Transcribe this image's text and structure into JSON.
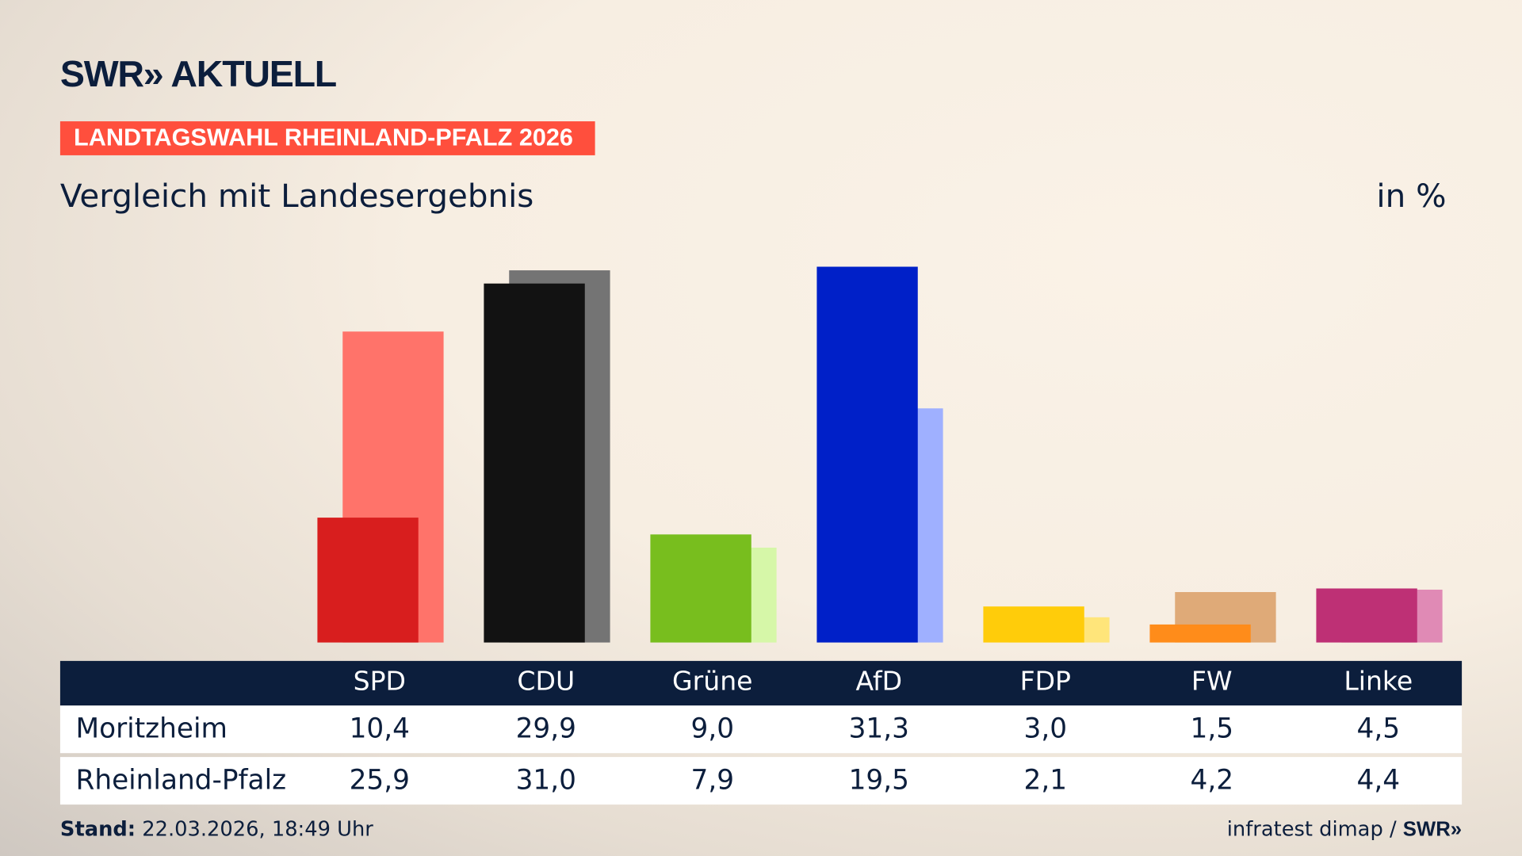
{
  "brand": {
    "logo_text": "SWR» AKTUELL",
    "footer_logo": "SWR»"
  },
  "tag": "LANDTAGSWAHL RHEINLAND-PFALZ 2026",
  "subtitle": "Vergleich mit Landesergebnis",
  "unit": "in %",
  "footer": {
    "stand_label": "Stand:",
    "stand_value": " 22.03.2026, 18:49 Uhr",
    "source": "infratest dimap / "
  },
  "chart_data": {
    "type": "bar",
    "categories": [
      "SPD",
      "CDU",
      "Grüne",
      "AfD",
      "FDP",
      "FW",
      "Linke"
    ],
    "series": [
      {
        "name": "Moritzheim",
        "values": [
          10.4,
          29.9,
          9.0,
          31.3,
          3.0,
          1.5,
          4.5
        ],
        "colors": [
          "#d81e1e",
          "#121212",
          "#78be1e",
          "#0020c8",
          "#ffcc0a",
          "#ff8c1a",
          "#be3075"
        ]
      },
      {
        "name": "Rheinland-Pfalz",
        "values": [
          25.9,
          31.0,
          7.9,
          19.5,
          2.1,
          4.2,
          4.4
        ],
        "colors": [
          "#ff736a",
          "#747474",
          "#d6f7a8",
          "#9fb0ff",
          "#ffe57a",
          "#dfaa78",
          "#e08ab5"
        ]
      }
    ],
    "value_labels": [
      [
        "10,4",
        "29,9",
        "9,0",
        "31,3",
        "3,0",
        "1,5",
        "4,5"
      ],
      [
        "25,9",
        "31,0",
        "7,9",
        "19,5",
        "2,1",
        "4,2",
        "4,4"
      ]
    ],
    "ylim": [
      0,
      32
    ]
  }
}
